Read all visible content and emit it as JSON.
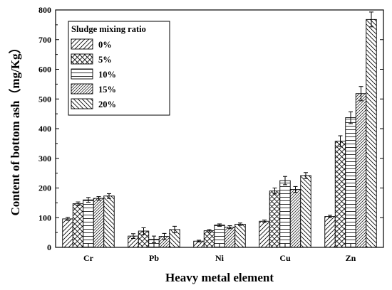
{
  "chart_data": {
    "type": "bar",
    "xlabel": "Heavy metal element",
    "ylabel": "Content of bottom ash（mg/Kg）",
    "ylim": [
      0,
      800
    ],
    "yticks": [
      0,
      100,
      200,
      300,
      400,
      500,
      600,
      700,
      800
    ],
    "categories": [
      "Cr",
      "Pb",
      "Ni",
      "Cu",
      "Zn"
    ],
    "legend": {
      "title": "Sludge mixing ratio",
      "position": "top-left"
    },
    "series": [
      {
        "name": "0%",
        "pattern": "diag-right",
        "values": [
          96,
          38,
          21,
          88,
          104
        ],
        "errors": [
          5,
          8,
          3,
          4,
          4
        ]
      },
      {
        "name": "5%",
        "pattern": "crosshatch",
        "values": [
          147,
          55,
          56,
          190,
          358
        ],
        "errors": [
          6,
          11,
          4,
          10,
          18
        ]
      },
      {
        "name": "10%",
        "pattern": "horizontal",
        "values": [
          160,
          27,
          75,
          225,
          437
        ],
        "errors": [
          8,
          11,
          4,
          14,
          20
        ]
      },
      {
        "name": "15%",
        "pattern": "diag-right-dense",
        "values": [
          165,
          37,
          68,
          195,
          518
        ],
        "errors": [
          6,
          10,
          5,
          10,
          24
        ]
      },
      {
        "name": "20%",
        "pattern": "diag-left",
        "values": [
          173,
          60,
          78,
          242,
          768
        ],
        "errors": [
          8,
          11,
          4,
          10,
          25
        ]
      }
    ]
  }
}
